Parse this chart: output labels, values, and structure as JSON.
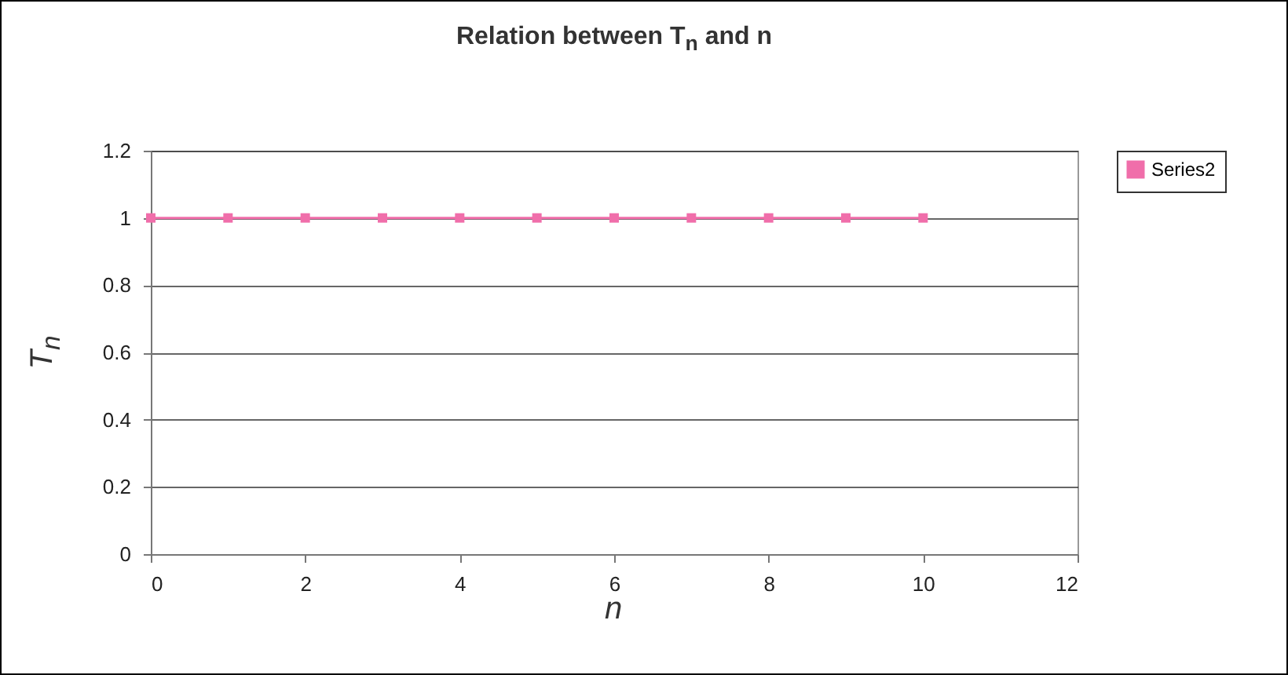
{
  "chart_data": {
    "type": "line",
    "title": "Relation between T$_{n}$ and n",
    "xlabel": "n",
    "ylabel": "T$_{n}$",
    "x": [
      0,
      1,
      2,
      3,
      4,
      5,
      6,
      7,
      8,
      9,
      10
    ],
    "series": [
      {
        "name": "Series2",
        "color": "#f06eaa",
        "values": [
          1,
          1,
          1,
          1,
          1,
          1,
          1,
          1,
          1,
          1,
          1
        ]
      }
    ],
    "xlim": [
      0,
      12
    ],
    "xticks": [
      0,
      2,
      4,
      6,
      8,
      10,
      12
    ],
    "ylim": [
      0,
      1.2
    ],
    "yticks": [
      0,
      0.2,
      0.4,
      0.6,
      0.8,
      1,
      1.2
    ],
    "grid": "y",
    "legend": "right",
    "marker": "square",
    "line_style": "solid"
  }
}
